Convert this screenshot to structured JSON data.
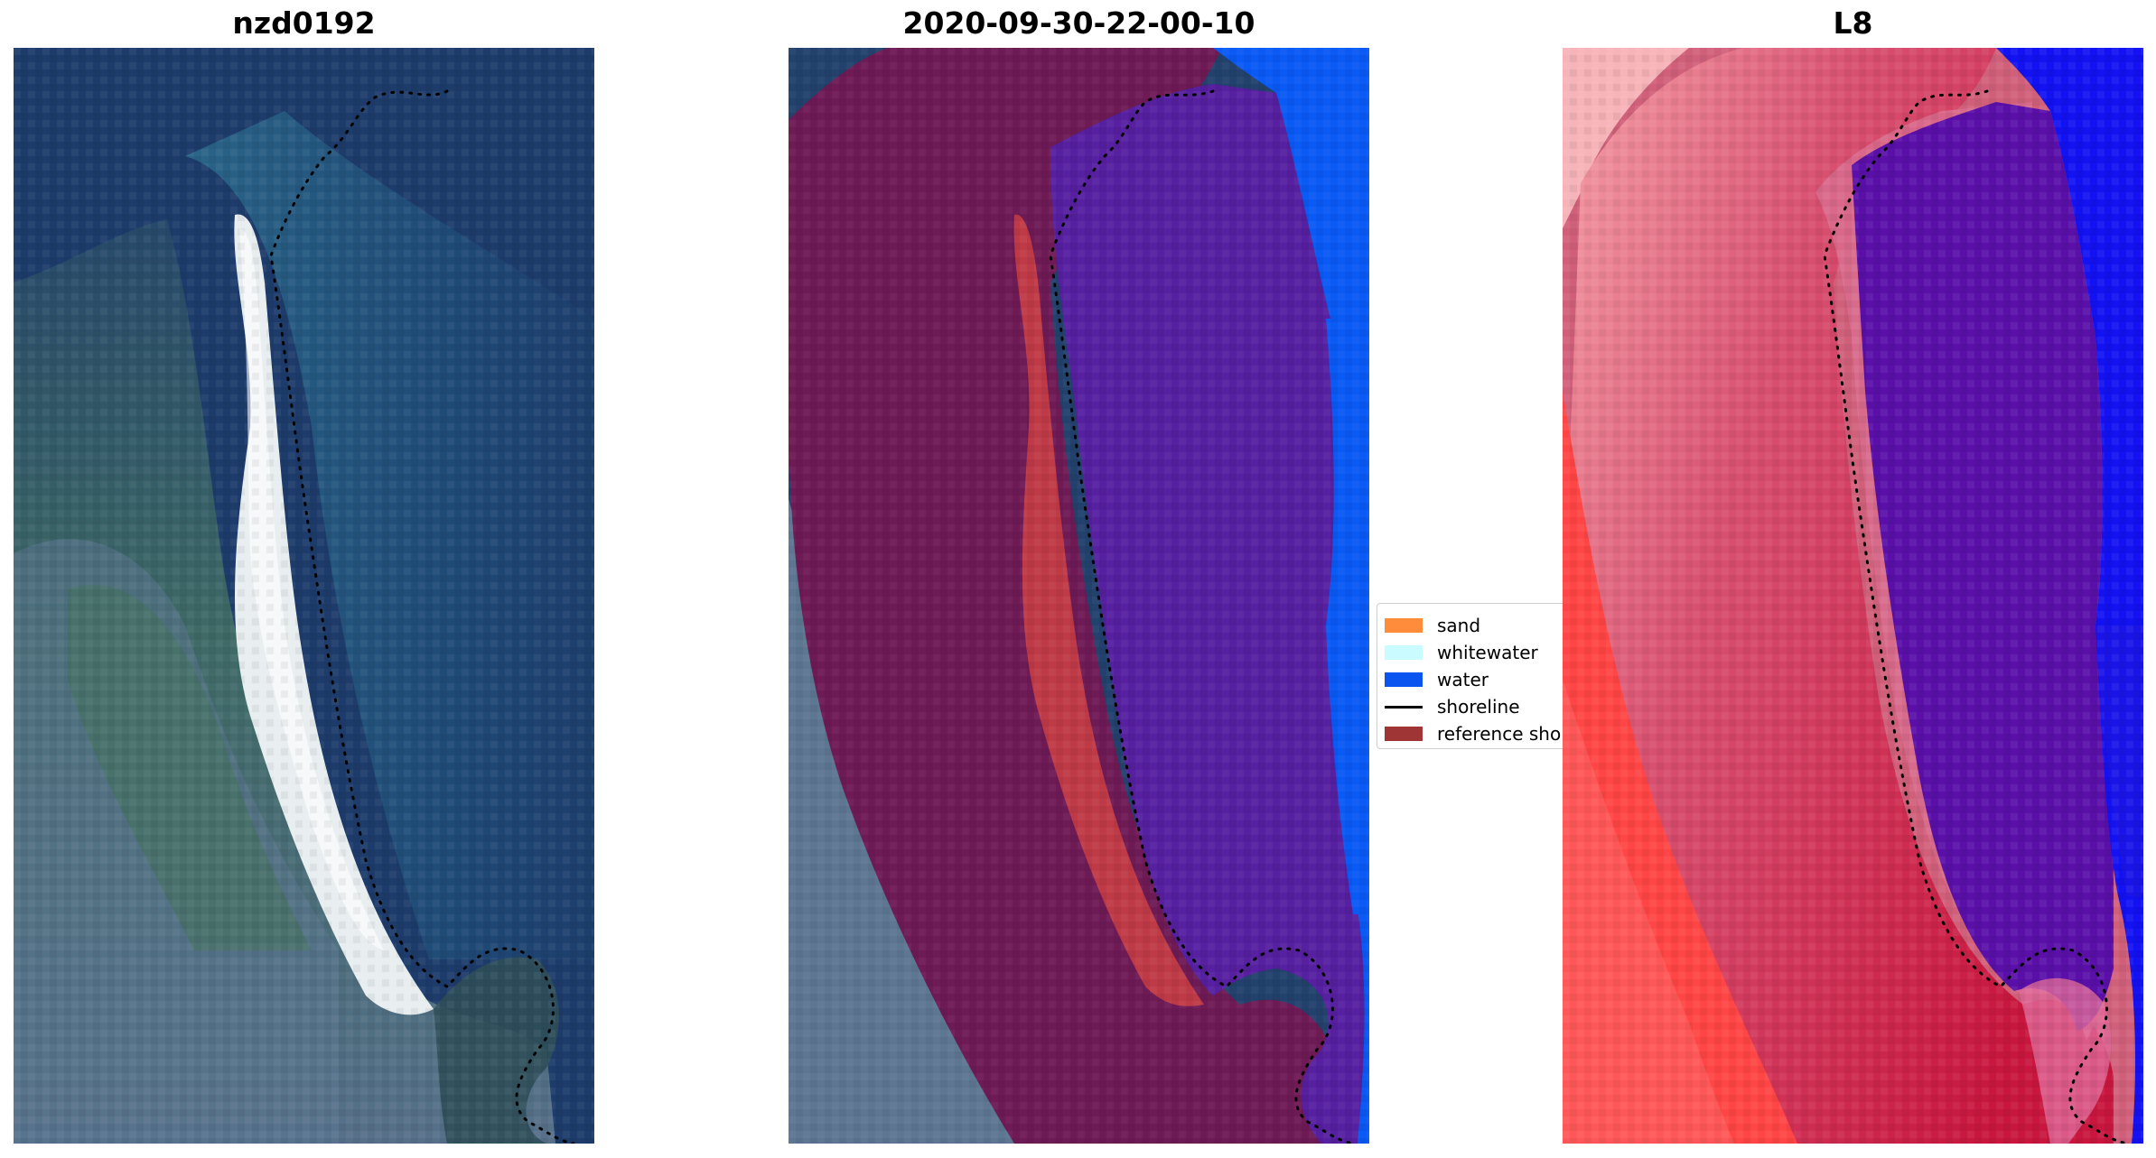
{
  "panels": [
    {
      "title": "nzd0192"
    },
    {
      "title": "2020-09-30-22-00-10"
    },
    {
      "title": "L8"
    }
  ],
  "legend": {
    "items": [
      {
        "label": "sand",
        "kind": "patch",
        "color": "#ff8c3b"
      },
      {
        "label": "whitewater",
        "kind": "patch",
        "color": "#c9fbff"
      },
      {
        "label": "water",
        "kind": "patch",
        "color": "#0a55f0"
      },
      {
        "label": "shoreline",
        "kind": "line",
        "color": "#000000"
      },
      {
        "label": "reference shoreline",
        "kind": "patch",
        "color": "#a03535"
      }
    ]
  },
  "colors": {
    "ocean_deep": "#1d3f70",
    "ocean_shallow": "#2c6a8f",
    "sand_beach": "#e6ecee",
    "land_green": "#4e7060",
    "urban": "#6a7f95",
    "buffer_overlay": "#6b1a55",
    "water_class_sea": "#5520a0",
    "water_class_open": "#0a5af5",
    "sand_class": "#c03a48",
    "false_color_land": "#c8163e",
    "false_color_urban": "#ff4040",
    "false_color_water": "#5a10a8",
    "false_color_open": "#1010f0"
  }
}
